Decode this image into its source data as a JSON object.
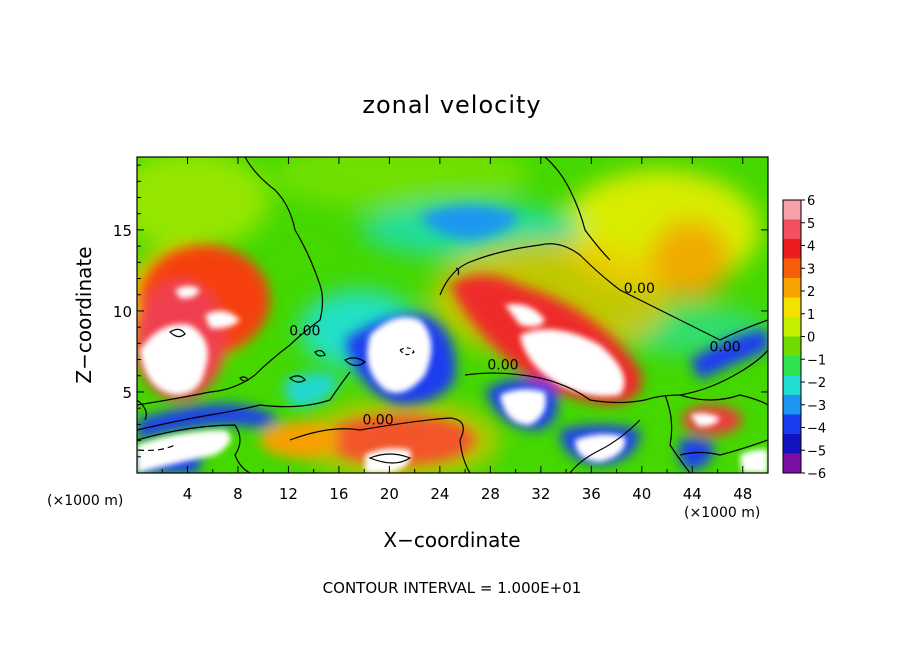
{
  "chart_data": {
    "type": "heatmap",
    "title": "zonal velocity",
    "xlabel": "X−coordinate",
    "ylabel": "Z−coordinate",
    "xlim": [
      0,
      50
    ],
    "ylim": [
      0,
      19.5
    ],
    "x_ticks": [
      4,
      8,
      12,
      16,
      20,
      24,
      28,
      32,
      36,
      40,
      44,
      48
    ],
    "y_ticks": [
      5,
      10,
      15
    ],
    "x_unit_label": "(×1000 m)",
    "y_unit_label": "(×1000 m)",
    "footer": "CONTOUR INTERVAL = 1.000E+01",
    "colorbar": {
      "ticks": [
        "6",
        "5",
        "4",
        "3",
        "2",
        "1",
        "0",
        "−1",
        "−2",
        "−3",
        "−4",
        "−5",
        "−6"
      ],
      "colors": [
        "#f6a0a8",
        "#f24f61",
        "#ee1c1c",
        "#f55d0a",
        "#f8a300",
        "#f5e100",
        "#c4f000",
        "#6fdc00",
        "#2fe34f",
        "#20ddd2",
        "#1c96f0",
        "#1c3cf0",
        "#1212bf",
        "#7a0fa3"
      ]
    },
    "contour_labels": [
      {
        "text": "0.00",
        "x": 39.8,
        "z": 11.1
      },
      {
        "text": "0.00",
        "x": 13.3,
        "z": 8.5
      },
      {
        "text": "0.00",
        "x": 29.0,
        "z": 6.4
      },
      {
        "text": "0.00",
        "x": 19.1,
        "z": 3.0
      },
      {
        "text": "0.00",
        "x": 46.6,
        "z": 7.5
      }
    ]
  }
}
